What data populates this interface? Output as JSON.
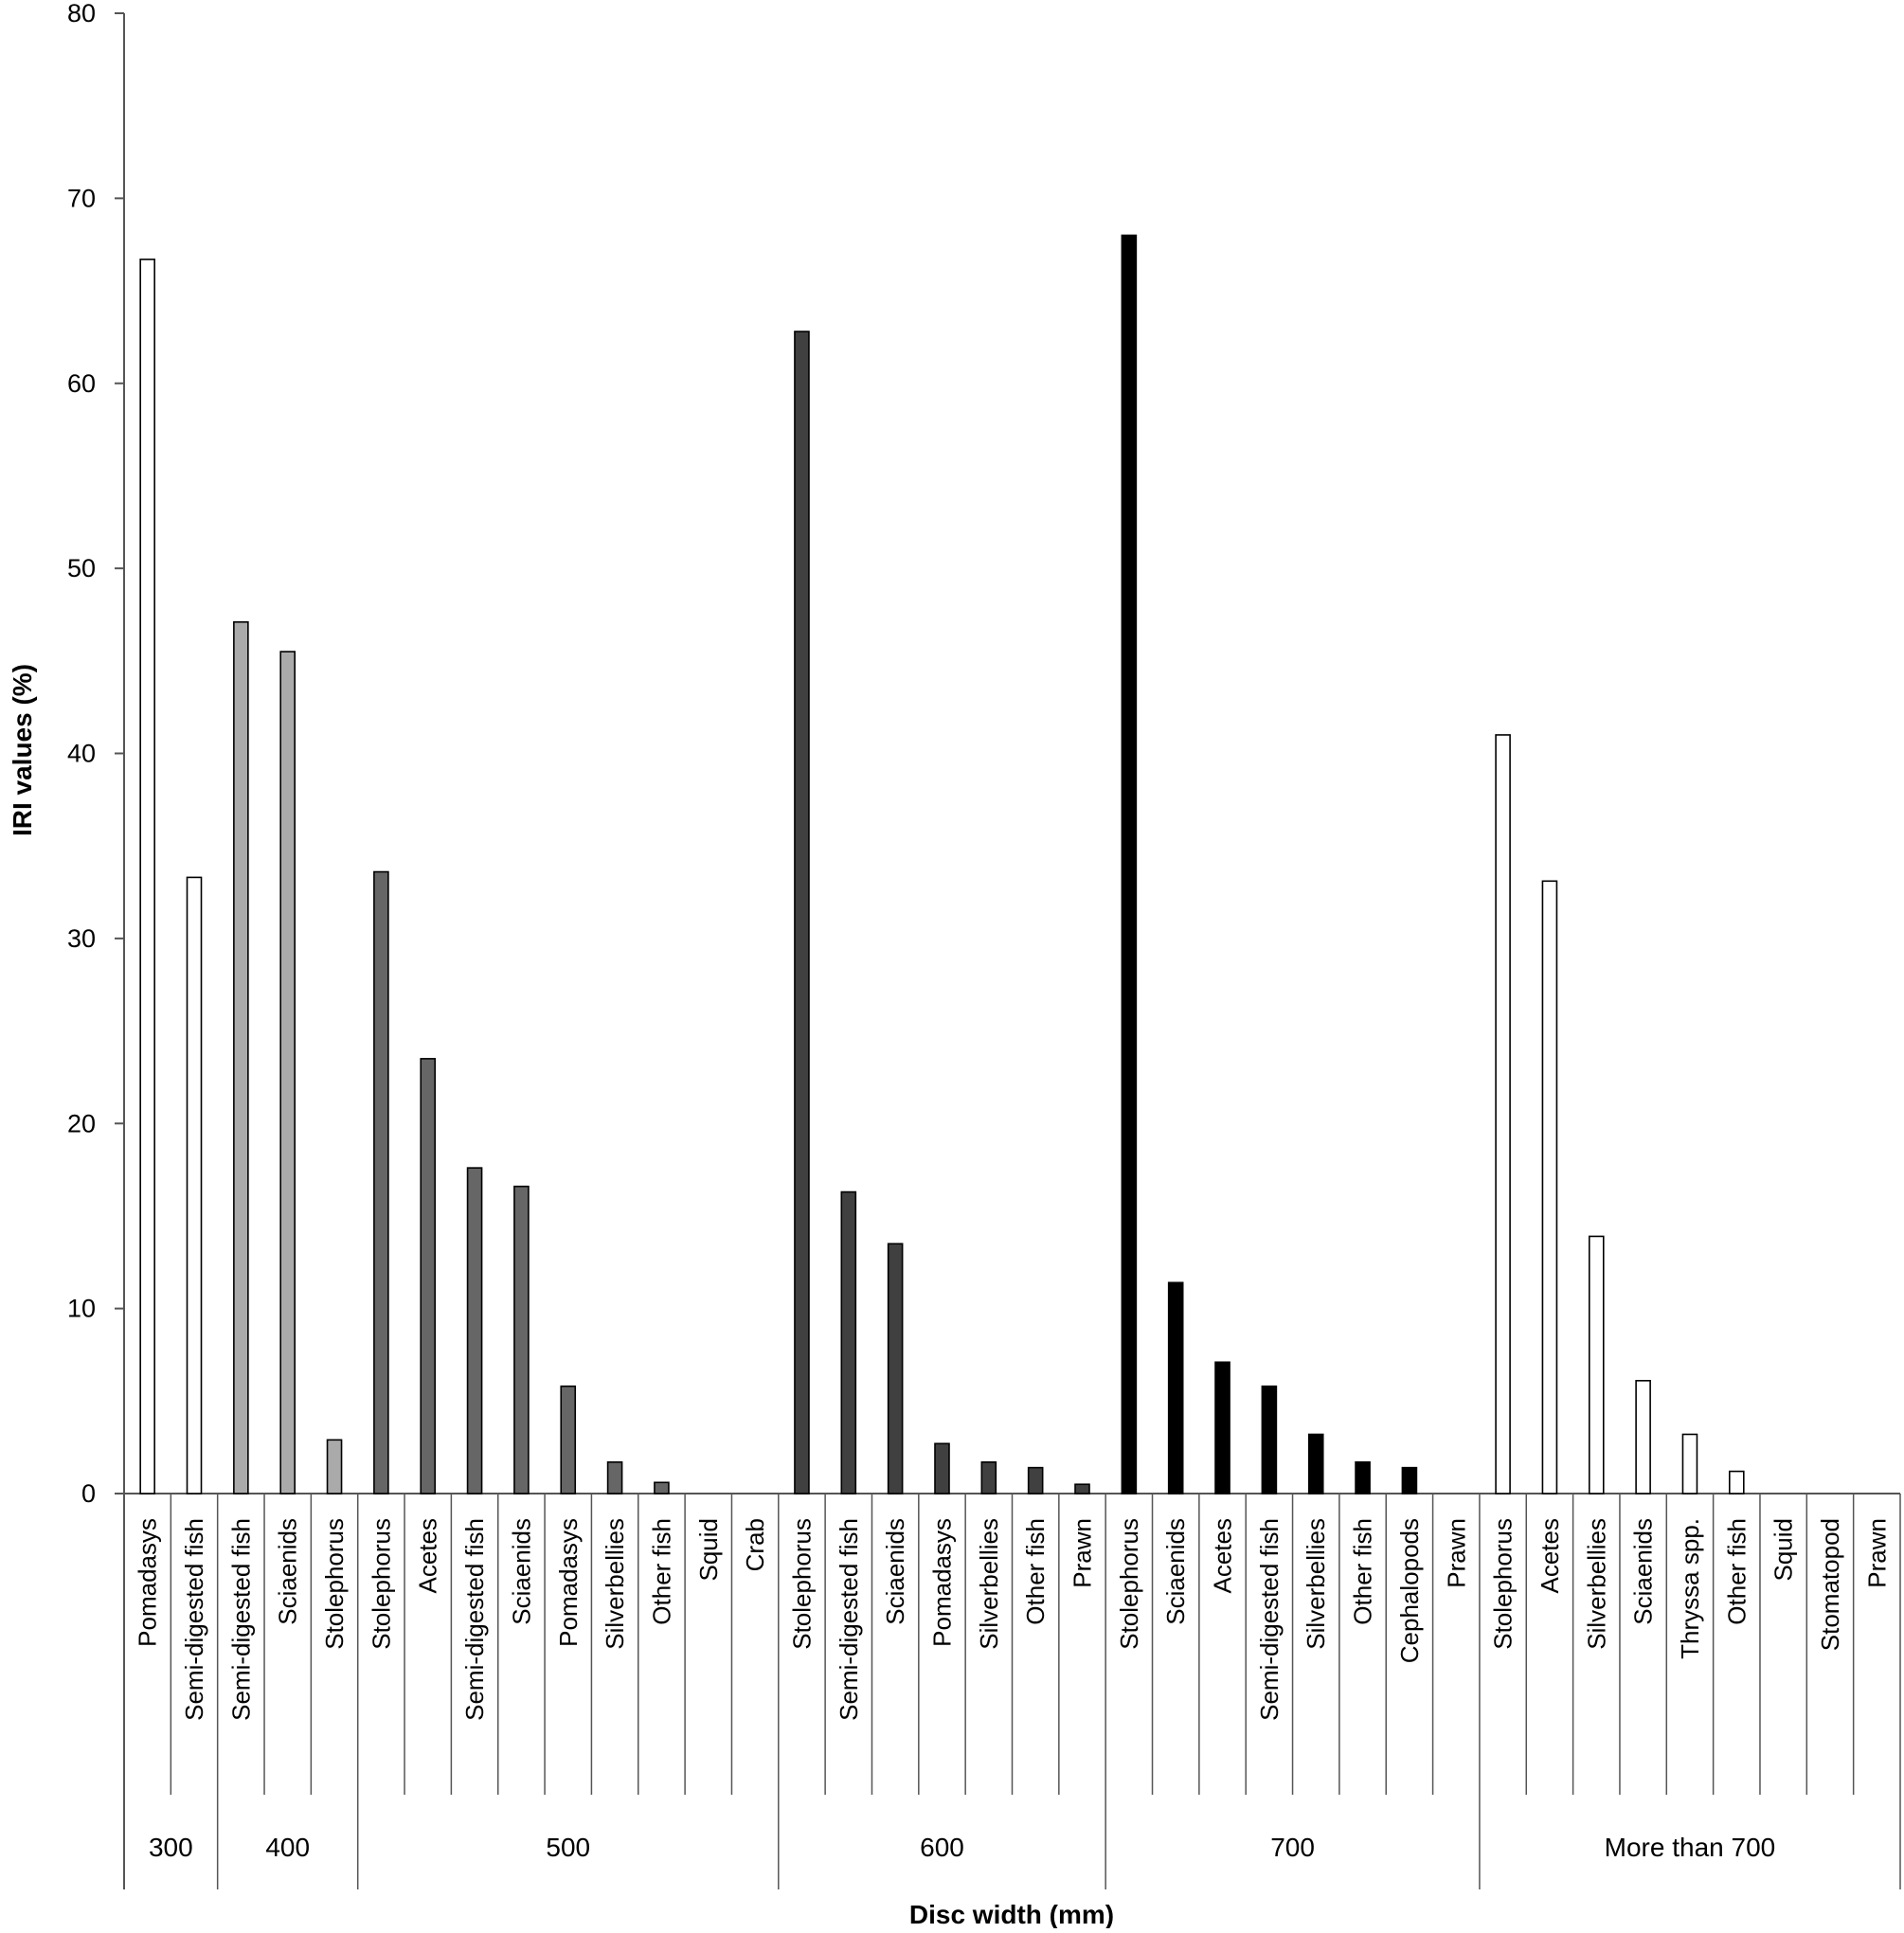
{
  "chart_data": {
    "type": "bar",
    "title": "",
    "xlabel": "Disc width (mm)",
    "ylabel": "IRI values (%)",
    "ylim": [
      0,
      80
    ],
    "yticks": [
      0,
      10,
      20,
      30,
      40,
      50,
      60,
      70,
      80
    ],
    "grid": false,
    "legend": "none",
    "groups": [
      {
        "name": "300",
        "color": "#ffffff",
        "categories": [
          "Pomadasys",
          "Semi-digested fish"
        ],
        "values": [
          66.7,
          33.3
        ]
      },
      {
        "name": "400",
        "color": "#aaaaaa",
        "categories": [
          "Semi-digested fish",
          "Sciaenids",
          "Stolephorus"
        ],
        "values": [
          47.1,
          45.5,
          2.9
        ]
      },
      {
        "name": "500",
        "color": "#666666",
        "categories": [
          "Stolephorus",
          "Acetes",
          "Semi-digested fish",
          "Sciaenids",
          "Pomadasys",
          "Silverbellies",
          "Other fish",
          "Squid",
          "Crab"
        ],
        "values": [
          33.6,
          23.5,
          17.6,
          16.6,
          5.8,
          1.7,
          0.6,
          0,
          0
        ]
      },
      {
        "name": "600",
        "color": "#404040",
        "categories": [
          "Stolephorus",
          "Semi-digested fish",
          "Sciaenids",
          "Pomadasys",
          "Silverbellies",
          "Other fish",
          "Prawn"
        ],
        "values": [
          62.8,
          16.3,
          13.5,
          2.7,
          1.7,
          1.4,
          0.5
        ]
      },
      {
        "name": "700",
        "color": "#000000",
        "categories": [
          "Stolephorus",
          "Sciaenids",
          "Acetes",
          "Semi-digested fish",
          "Silverbellies",
          "Other fish",
          "Cephalopods",
          "Prawn"
        ],
        "values": [
          68.0,
          11.4,
          7.1,
          5.8,
          3.2,
          1.7,
          1.4,
          0
        ]
      },
      {
        "name": "More than 700",
        "color": "#ffffff",
        "categories": [
          "Stolephorus",
          "Acetes",
          "Silverbellies",
          "Sciaenids",
          "Thryssa spp.",
          "Other fish",
          "Squid",
          "Stomatopod",
          "Prawn"
        ],
        "values": [
          41.0,
          33.1,
          13.9,
          6.1,
          3.2,
          1.2,
          0,
          0,
          0
        ]
      }
    ]
  }
}
